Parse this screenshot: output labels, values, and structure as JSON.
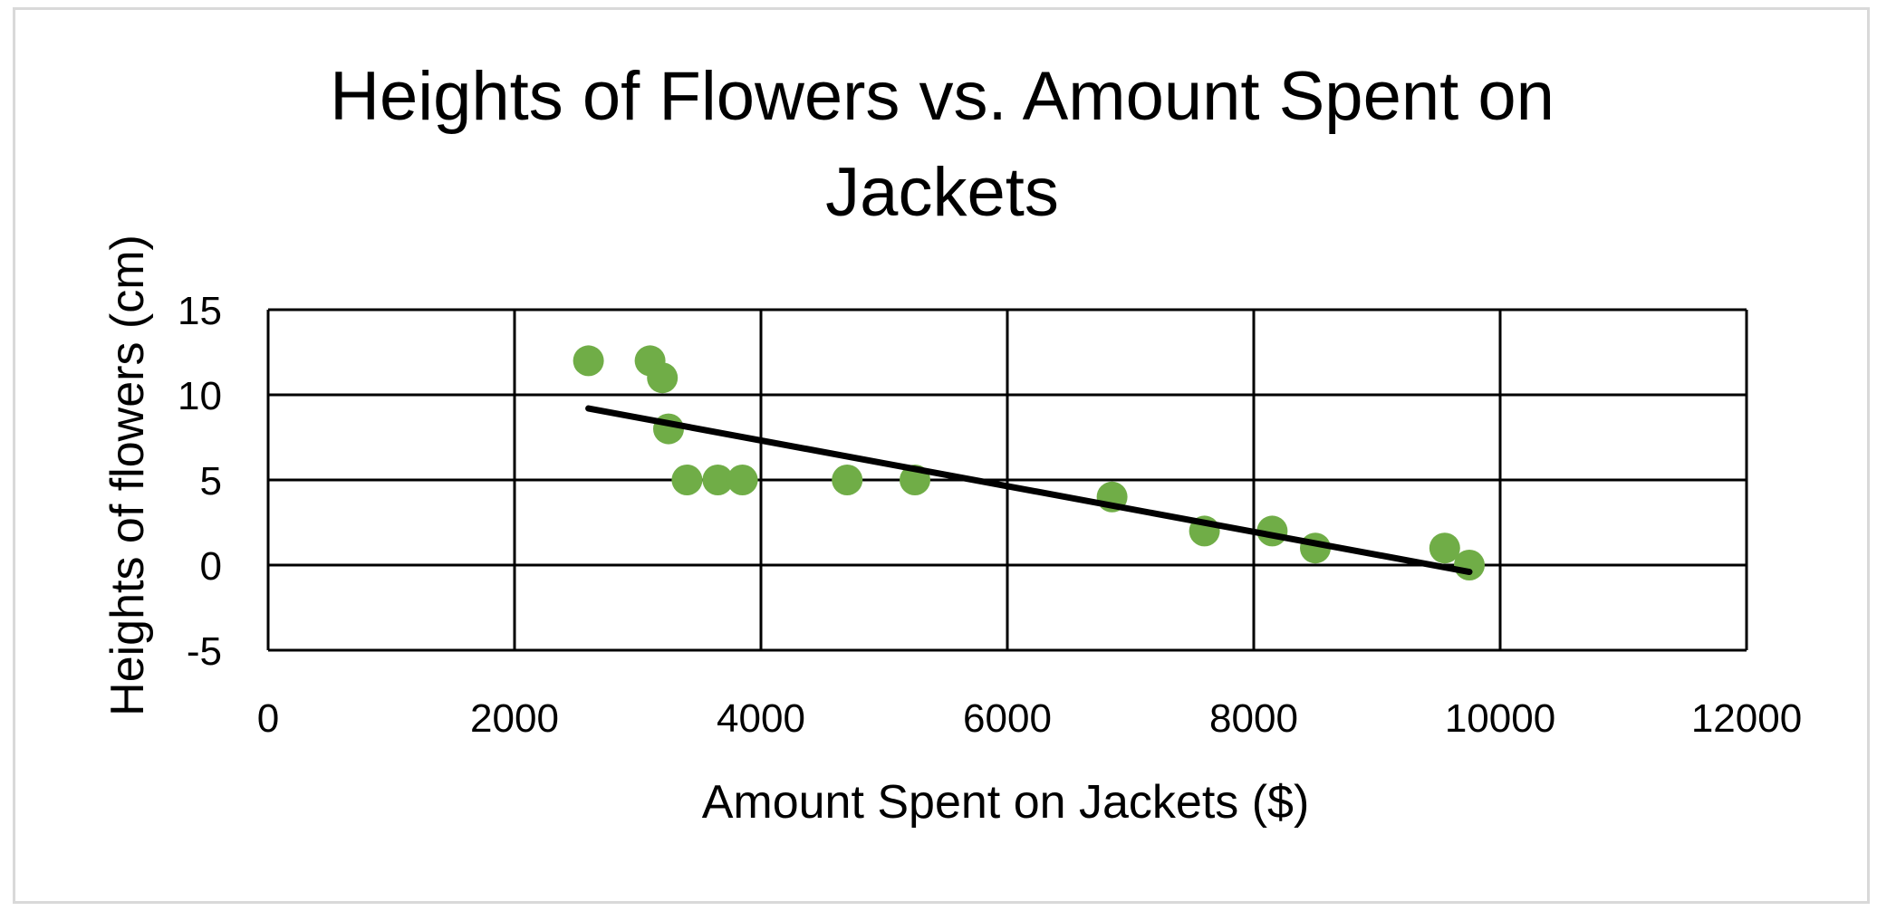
{
  "chart_data": {
    "type": "scatter",
    "title_lines": [
      "Heights of Flowers vs. Amount Spent on",
      "Jackets"
    ],
    "xlabel": "Amount Spent on Jackets ($)",
    "ylabel": "Heights of flowers (cm)",
    "xlim": [
      0,
      12000
    ],
    "ylim": [
      -5,
      15
    ],
    "x_ticks": [
      0,
      2000,
      4000,
      6000,
      8000,
      10000,
      12000
    ],
    "y_ticks": [
      -5,
      0,
      5,
      10,
      15
    ],
    "x_tick_labels": [
      "0",
      "2000",
      "4000",
      "6000",
      "8000",
      "10000",
      "12000"
    ],
    "y_tick_labels": [
      "-5",
      "0",
      "5",
      "10",
      "15"
    ],
    "grid": true,
    "point_color": "#70ad47",
    "trendline_color": "#000000",
    "points": [
      {
        "x": 2600,
        "y": 12
      },
      {
        "x": 3100,
        "y": 12
      },
      {
        "x": 3200,
        "y": 11
      },
      {
        "x": 3250,
        "y": 8
      },
      {
        "x": 3400,
        "y": 5
      },
      {
        "x": 3650,
        "y": 5
      },
      {
        "x": 3850,
        "y": 5
      },
      {
        "x": 4700,
        "y": 5
      },
      {
        "x": 5250,
        "y": 5
      },
      {
        "x": 6850,
        "y": 4
      },
      {
        "x": 7600,
        "y": 2
      },
      {
        "x": 8150,
        "y": 2
      },
      {
        "x": 8500,
        "y": 1
      },
      {
        "x": 9550,
        "y": 1
      },
      {
        "x": 9750,
        "y": 0
      }
    ],
    "trendline": {
      "x": [
        2600,
        9750
      ],
      "y": [
        9.2,
        -0.4
      ]
    }
  }
}
